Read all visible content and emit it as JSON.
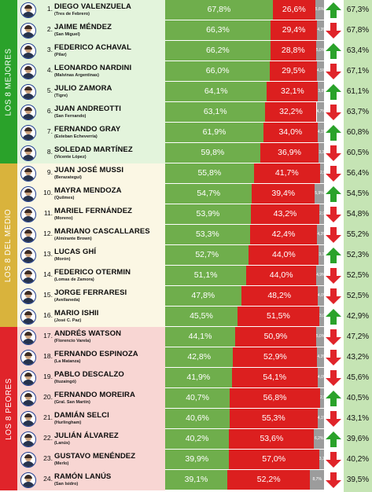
{
  "sections": [
    {
      "label": "LOS 8 MEJORES",
      "color": "#2aa22a",
      "bg": "#e3f4dc"
    },
    {
      "label": "LOS 8 DEL MEDIO",
      "color": "#d9b33c",
      "bg": "#fbf7e4"
    },
    {
      "label": "LOS 8 PEORES",
      "color": "#e0242a",
      "bg": "#f8d6d3"
    }
  ],
  "colors": {
    "approval": "#6fae4c",
    "disapproval": "#dc1f1f",
    "ns": "#9c9c9c",
    "up": "#2aa22a",
    "down": "#e0242a"
  },
  "chart_data": {
    "type": "bar",
    "series_keys": [
      "approval",
      "disapproval",
      "ns_nc",
      "previous",
      "trend"
    ],
    "rows": [
      {
        "rank": "1.",
        "name": "DIEGO VALENZUELA",
        "district": "(Tres de Febrero)",
        "approval": 67.8,
        "approval_label": "67,8%",
        "disapproval": 26.6,
        "disapproval_label": "26,6%",
        "ns": 5.6,
        "ns_label": "5,6%",
        "previous": "67,3%",
        "trend": "up"
      },
      {
        "rank": "2.",
        "name": "JAIME MÉNDEZ",
        "district": "(San Miguel)",
        "approval": 66.3,
        "approval_label": "66,3%",
        "disapproval": 29.4,
        "disapproval_label": "29,4%",
        "ns": 4.3,
        "ns_label": "4,3%",
        "previous": "67,8%",
        "trend": "down"
      },
      {
        "rank": "3.",
        "name": "FEDERICO ACHAVAL",
        "district": "(Pilar)",
        "approval": 66.2,
        "approval_label": "66,2%",
        "disapproval": 28.8,
        "disapproval_label": "28,8%",
        "ns": 5.0,
        "ns_label": "5,0%",
        "previous": "63,4%",
        "trend": "up"
      },
      {
        "rank": "4.",
        "name": "LEONARDO NARDINI",
        "district": "(Malvinas Argentinas)",
        "approval": 66.0,
        "approval_label": "66,0%",
        "disapproval": 29.5,
        "disapproval_label": "29,5%",
        "ns": 4.5,
        "ns_label": "4,5%",
        "previous": "67,1%",
        "trend": "down"
      },
      {
        "rank": "5.",
        "name": "JULIO ZAMORA",
        "district": "(Tigre)",
        "approval": 64.1,
        "approval_label": "64,1%",
        "disapproval": 32.1,
        "disapproval_label": "32,1%",
        "ns": 3.8,
        "ns_label": "3,8%",
        "previous": "61,1%",
        "trend": "up"
      },
      {
        "rank": "6.",
        "name": "JUAN ANDREOTTI",
        "district": "(San Fernando)",
        "approval": 63.1,
        "approval_label": "63,1%",
        "disapproval": 32.2,
        "disapproval_label": "32,2%",
        "ns": 4.7,
        "ns_label": "4,7%",
        "previous": "63,7%",
        "trend": "down"
      },
      {
        "rank": "7.",
        "name": "FERNANDO GRAY",
        "district": "(Esteban Echeverría)",
        "approval": 61.9,
        "approval_label": "61,9%",
        "disapproval": 34.0,
        "disapproval_label": "34,0%",
        "ns": 4.1,
        "ns_label": "4,1%",
        "previous": "60,8%",
        "trend": "up"
      },
      {
        "rank": "8.",
        "name": "SOLEDAD MARTÍNEZ",
        "district": "(Vicente López)",
        "approval": 59.8,
        "approval_label": "59,8%",
        "disapproval": 36.9,
        "disapproval_label": "36,9%",
        "ns": 3.3,
        "ns_label": "3,3%",
        "previous": "60,5%",
        "trend": "down"
      },
      {
        "rank": "9.",
        "name": "JUAN JOSÉ MUSSI",
        "district": "(Berazategui)",
        "approval": 55.8,
        "approval_label": "55,8%",
        "disapproval": 41.7,
        "disapproval_label": "41,7%",
        "ns": 2.5,
        "ns_label": "2,5%",
        "previous": "56,4%",
        "trend": "down"
      },
      {
        "rank": "10.",
        "name": "MAYRA MENDOZA",
        "district": "(Quilmes)",
        "approval": 54.7,
        "approval_label": "54,7%",
        "disapproval": 39.4,
        "disapproval_label": "39,4%",
        "ns": 5.9,
        "ns_label": "5,9%",
        "previous": "54,5%",
        "trend": "up"
      },
      {
        "rank": "11.",
        "name": "MARIEL FERNÁNDEZ",
        "district": "(Moreno)",
        "approval": 53.9,
        "approval_label": "53,9%",
        "disapproval": 43.2,
        "disapproval_label": "43,2%",
        "ns": 2.9,
        "ns_label": "2,9%",
        "previous": "54,8%",
        "trend": "down"
      },
      {
        "rank": "12.",
        "name": "MARIANO CASCALLARES",
        "district": "(Almirante Brown)",
        "approval": 53.3,
        "approval_label": "53,3%",
        "disapproval": 42.4,
        "disapproval_label": "42,4%",
        "ns": 4.3,
        "ns_label": "4,3%",
        "previous": "55,2%",
        "trend": "down"
      },
      {
        "rank": "13.",
        "name": "LUCAS GHÍ",
        "district": "(Morón)",
        "approval": 52.7,
        "approval_label": "52,7%",
        "disapproval": 44.0,
        "disapproval_label": "44,0%",
        "ns": 3.3,
        "ns_label": "3,3%",
        "previous": "52,3%",
        "trend": "up"
      },
      {
        "rank": "14.",
        "name": "FEDERICO OTERMIN",
        "district": "(Lomas de Zamora)",
        "approval": 51.1,
        "approval_label": "51,1%",
        "disapproval": 44.0,
        "disapproval_label": "44,0%",
        "ns": 4.9,
        "ns_label": "4,9%",
        "previous": "52,5%",
        "trend": "down"
      },
      {
        "rank": "15.",
        "name": "JORGE FERRARESI",
        "district": "(Avellaneda)",
        "approval": 47.8,
        "approval_label": "47,8%",
        "disapproval": 48.2,
        "disapproval_label": "48,2%",
        "ns": 4.0,
        "ns_label": "4,0%",
        "previous": "52,5%",
        "trend": "down"
      },
      {
        "rank": "16.",
        "name": "MARIO ISHII",
        "district": "(José C. Paz)",
        "approval": 45.5,
        "approval_label": "45,5%",
        "disapproval": 51.5,
        "disapproval_label": "51,5%",
        "ns": 3.0,
        "ns_label": "3,0%",
        "previous": "42,9%",
        "trend": "up"
      },
      {
        "rank": "17.",
        "name": "ANDRÉS WATSON",
        "district": "(Florencio Varela)",
        "approval": 44.1,
        "approval_label": "44,1%",
        "disapproval": 50.9,
        "disapproval_label": "50,9%",
        "ns": 5.0,
        "ns_label": "5,0%",
        "previous": "47,2%",
        "trend": "down"
      },
      {
        "rank": "18.",
        "name": "FERNANDO ESPINOZA",
        "district": "(La Matanza)",
        "approval": 42.8,
        "approval_label": "42,8%",
        "disapproval": 52.9,
        "disapproval_label": "52,9%",
        "ns": 4.3,
        "ns_label": "4,3%",
        "previous": "43,2%",
        "trend": "down"
      },
      {
        "rank": "19.",
        "name": "PABLO DESCALZO",
        "district": "(Ituzaingó)",
        "approval": 41.9,
        "approval_label": "41,9%",
        "disapproval": 54.1,
        "disapproval_label": "54,1%",
        "ns": 4.0,
        "ns_label": "4,0%",
        "previous": "45,6%",
        "trend": "down"
      },
      {
        "rank": "20.",
        "name": "FERNANDO MOREIRA",
        "district": "(Gral. San Martín)",
        "approval": 40.7,
        "approval_label": "40,7%",
        "disapproval": 56.8,
        "disapproval_label": "56,8%",
        "ns": 2.5,
        "ns_label": "2,5%",
        "previous": "40,5%",
        "trend": "up"
      },
      {
        "rank": "21.",
        "name": "DAMIÁN SELCI",
        "district": "(Hurlingham)",
        "approval": 40.6,
        "approval_label": "40,6%",
        "disapproval": 55.3,
        "disapproval_label": "55,3%",
        "ns": 4.1,
        "ns_label": "4,1%",
        "previous": "43,1%",
        "trend": "down"
      },
      {
        "rank": "22.",
        "name": "JULIÁN ÁLVAREZ",
        "district": "(Lanús)",
        "approval": 40.2,
        "approval_label": "40,2%",
        "disapproval": 53.6,
        "disapproval_label": "53,6%",
        "ns": 6.2,
        "ns_label": "6,2%",
        "previous": "39,6%",
        "trend": "up"
      },
      {
        "rank": "23.",
        "name": "GUSTAVO MENÉNDEZ",
        "district": "(Merlo)",
        "approval": 39.9,
        "approval_label": "39,9%",
        "disapproval": 57.0,
        "disapproval_label": "57,0%",
        "ns": 3.1,
        "ns_label": "3,1%",
        "previous": "40,2%",
        "trend": "down"
      },
      {
        "rank": "24.",
        "name": "RAMÓN LANÚS",
        "district": "(San Isidro)",
        "approval": 39.1,
        "approval_label": "39,1%",
        "disapproval": 52.2,
        "disapproval_label": "52,2%",
        "ns": 8.7,
        "ns_label": "8,7%",
        "previous": "39,5%",
        "trend": "down"
      }
    ]
  }
}
